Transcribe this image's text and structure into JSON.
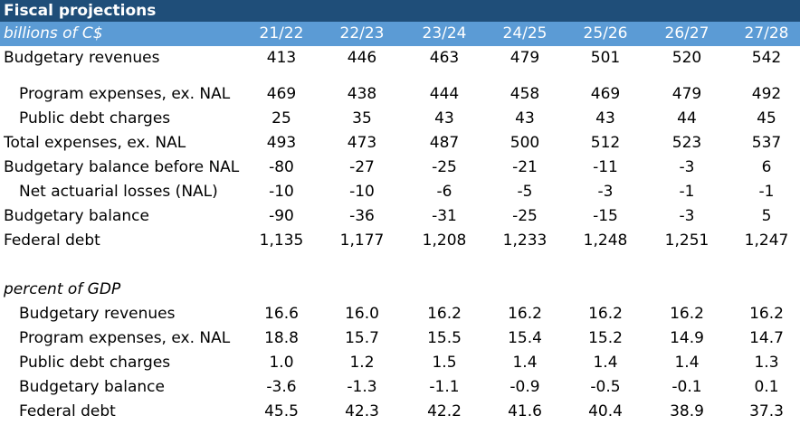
{
  "title": "Fiscal projections",
  "section1_label": "billions of C$",
  "years": [
    "21/22",
    "22/23",
    "23/24",
    "24/25",
    "25/26",
    "26/27",
    "27/28"
  ],
  "billions_rows": [
    {
      "label": "Budgetary revenues",
      "indent": false,
      "values": [
        "413",
        "446",
        "463",
        "479",
        "501",
        "520",
        "542"
      ]
    },
    {
      "label": "Program expenses, ex. NAL",
      "indent": true,
      "values": [
        "469",
        "438",
        "444",
        "458",
        "469",
        "479",
        "492"
      ]
    },
    {
      "label": "Public debt charges",
      "indent": true,
      "values": [
        "25",
        "35",
        "43",
        "43",
        "43",
        "44",
        "45"
      ]
    },
    {
      "label": "Total expenses, ex. NAL",
      "indent": false,
      "values": [
        "493",
        "473",
        "487",
        "500",
        "512",
        "523",
        "537"
      ]
    },
    {
      "label": "Budgetary balance before NAL",
      "indent": false,
      "values": [
        "-80",
        "-27",
        "-25",
        "-21",
        "-11",
        "-3",
        "6"
      ]
    },
    {
      "label": "Net actuarial losses (NAL)",
      "indent": true,
      "values": [
        "-10",
        "-10",
        "-6",
        "-5",
        "-3",
        "-1",
        "-1"
      ]
    },
    {
      "label": "Budgetary balance",
      "indent": false,
      "values": [
        "-90",
        "-36",
        "-31",
        "-25",
        "-15",
        "-3",
        "5"
      ]
    },
    {
      "label": "Federal debt",
      "indent": false,
      "values": [
        "1,135",
        "1,177",
        "1,208",
        "1,233",
        "1,248",
        "1,251",
        "1,247"
      ]
    }
  ],
  "section2_label": "percent of GDP",
  "percent_rows": [
    {
      "label": "Budgetary revenues",
      "indent": true,
      "values": [
        "16.6",
        "16.0",
        "16.2",
        "16.2",
        "16.2",
        "16.2",
        "16.2"
      ]
    },
    {
      "label": "Program expenses, ex. NAL",
      "indent": true,
      "values": [
        "18.8",
        "15.7",
        "15.5",
        "15.4",
        "15.2",
        "14.9",
        "14.7"
      ]
    },
    {
      "label": "Public debt charges",
      "indent": true,
      "values": [
        "1.0",
        "1.2",
        "1.5",
        "1.4",
        "1.4",
        "1.4",
        "1.3"
      ]
    },
    {
      "label": "Budgetary balance",
      "indent": true,
      "values": [
        "-3.6",
        "-1.3",
        "-1.1",
        "-0.9",
        "-0.5",
        "-0.1",
        "0.1"
      ]
    },
    {
      "label": "Federal debt",
      "indent": true,
      "values": [
        "45.5",
        "42.3",
        "42.2",
        "41.6",
        "40.4",
        "38.9",
        "37.3"
      ]
    }
  ]
}
